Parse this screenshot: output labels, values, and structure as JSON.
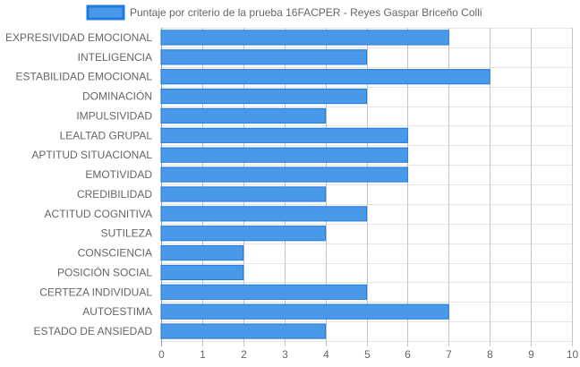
{
  "chart_data": {
    "type": "bar",
    "orientation": "horizontal",
    "title": "",
    "xlabel": "",
    "ylabel": "",
    "categories": [
      "EXPRESIVIDAD EMOCIONAL",
      "INTELIGENCIA",
      "ESTABILIDAD EMOCIONAL",
      "DOMINACIÓN",
      "IMPULSIVIDAD",
      "LEALTAD GRUPAL",
      "APTITUD SITUACIONAL",
      "EMOTIVIDAD",
      "CREDIBILIDAD",
      "ACTITUD COGNITIVA",
      "SUTILEZA",
      "CONSCIENCIA",
      "POSICIÓN SOCIAL",
      "CERTEZA INDIVIDUAL",
      "AUTOESTIMA",
      "ESTADO DE ANSIEDAD"
    ],
    "series": [
      {
        "name": "Puntaje por criterio de la prueba 16FACPER - Reyes Gaspar Briceño Colli",
        "values": [
          7,
          5,
          8,
          5,
          4,
          6,
          6,
          6,
          4,
          5,
          4,
          2,
          2,
          5,
          7,
          4
        ],
        "color": "#4a98e8",
        "border_color": "#1e7be0"
      }
    ],
    "xlim": [
      0,
      10
    ],
    "x_ticks": [
      "0",
      "1",
      "2",
      "3",
      "4",
      "5",
      "6",
      "7",
      "8",
      "9",
      "10"
    ],
    "grid": true,
    "legend_position": "top"
  }
}
